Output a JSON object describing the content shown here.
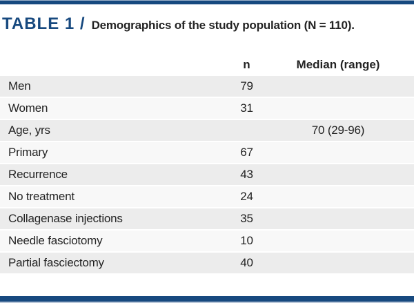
{
  "title": {
    "table_label": "TABLE 1 /",
    "subtitle": "Demographics of the study population (N = 110)."
  },
  "table": {
    "columns": [
      "",
      "n",
      "Median (range)"
    ],
    "rows": [
      {
        "label": "Men",
        "n": "79",
        "median": ""
      },
      {
        "label": "Women",
        "n": "31",
        "median": ""
      },
      {
        "label": "Age, yrs",
        "n": "",
        "median": "70 (29-96)"
      },
      {
        "label": "Primary",
        "n": "67",
        "median": ""
      },
      {
        "label": "Recurrence",
        "n": "43",
        "median": ""
      },
      {
        "label": "No treatment",
        "n": "24",
        "median": ""
      },
      {
        "label": "Collagenase injections",
        "n": "35",
        "median": ""
      },
      {
        "label": "Needle fasciotomy",
        "n": "10",
        "median": ""
      },
      {
        "label": "Partial fasciectomy",
        "n": "40",
        "median": ""
      }
    ]
  },
  "colors": {
    "navy": "#17497f",
    "row_gray": "#ececec",
    "row_light": "#f8f8f8",
    "text": "#232323"
  }
}
